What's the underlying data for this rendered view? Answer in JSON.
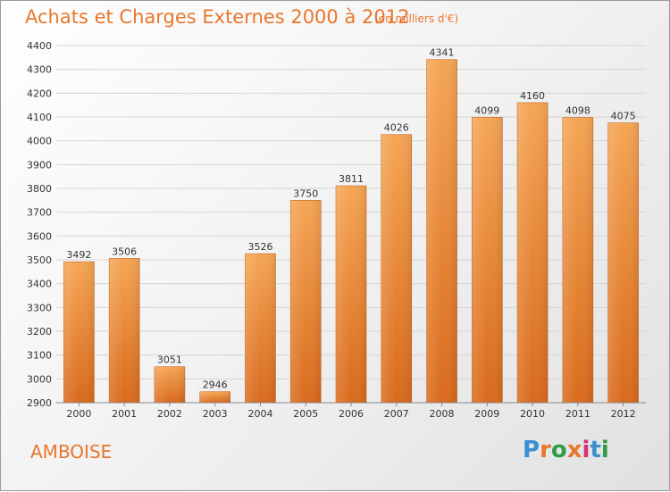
{
  "title": "Achats et Charges Externes 2000 à 2012",
  "unit_label": "(en milliers d'€)",
  "place": "AMBOISE",
  "brand": "Proxiti",
  "colors": {
    "title": "#e8762c",
    "bar_top": "#f5a554",
    "bar_bottom": "#d96a1c",
    "grid": "#d4d4d4",
    "axis_text": "#333333"
  },
  "chart_data": {
    "type": "bar",
    "title": "Achats et Charges Externes 2000 à 2012",
    "subtitle": "(en milliers d'€)",
    "xlabel": "",
    "ylabel": "",
    "categories": [
      "2000",
      "2001",
      "2002",
      "2003",
      "2004",
      "2005",
      "2006",
      "2007",
      "2008",
      "2009",
      "2010",
      "2011",
      "2012"
    ],
    "values": [
      3492,
      3506,
      3051,
      2946,
      3526,
      3750,
      3811,
      4026,
      4341,
      4099,
      4160,
      4098,
      4075
    ],
    "ylim": [
      2900,
      4400
    ],
    "yticks": [
      2900,
      3000,
      3100,
      3200,
      3300,
      3400,
      3500,
      3600,
      3700,
      3800,
      3900,
      4000,
      4100,
      4200,
      4300,
      4400
    ],
    "grid": true,
    "legend": "none"
  }
}
